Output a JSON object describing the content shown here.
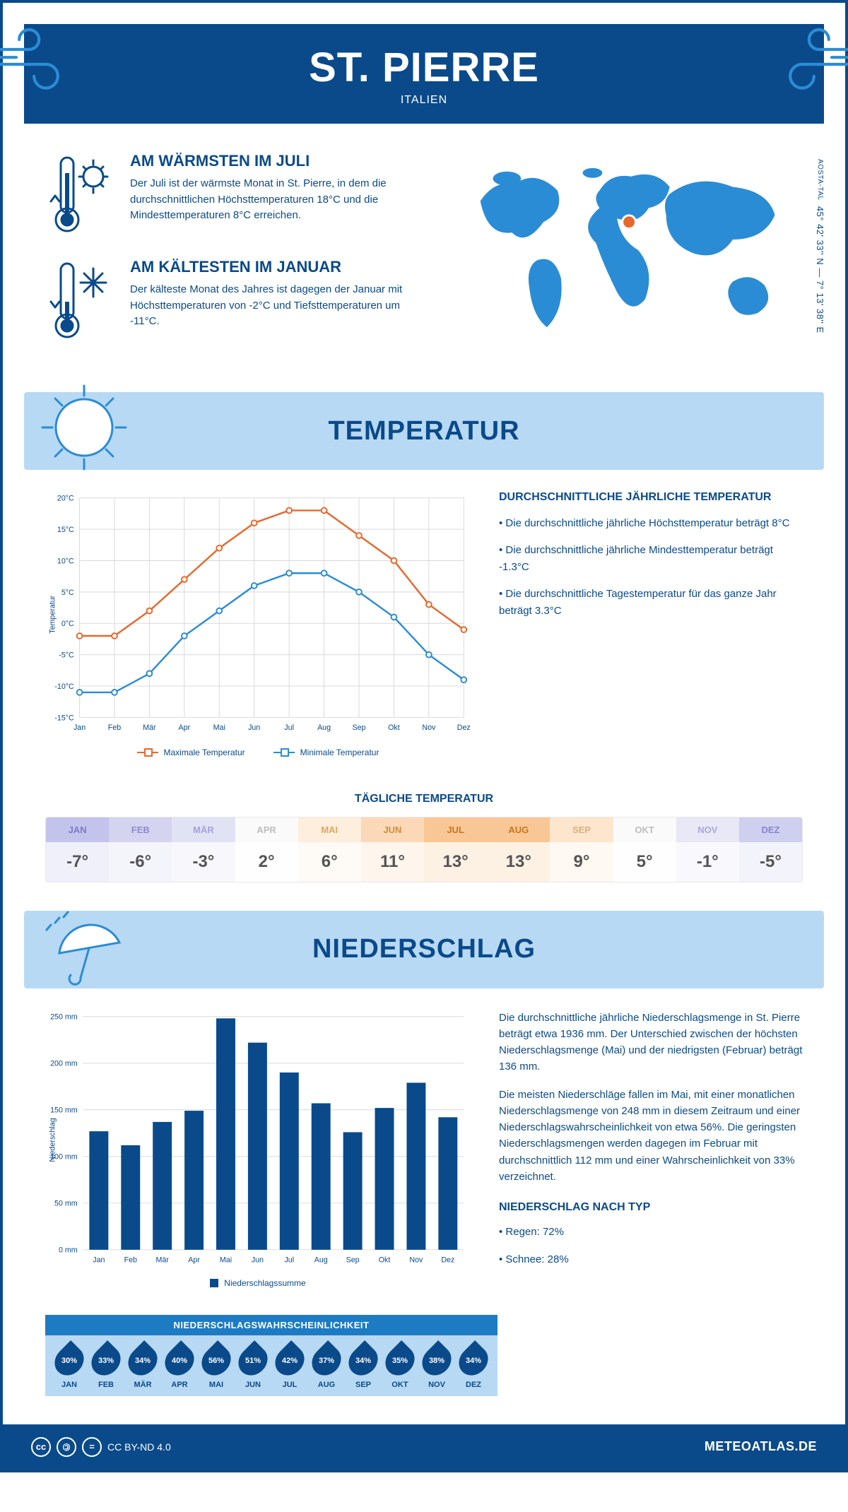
{
  "header": {
    "title": "ST. PIERRE",
    "country": "ITALIEN"
  },
  "coords": {
    "lat": "45° 42' 33'' N",
    "sep": "—",
    "lon": "7° 13' 38'' E",
    "region": "AOSTA-TAL"
  },
  "facts": {
    "warm": {
      "title": "AM WÄRMSTEN IM JULI",
      "text": "Der Juli ist der wärmste Monat in St. Pierre, in dem die durchschnittlichen Höchsttemperaturen 18°C und die Mindesttemperaturen 8°C erreichen."
    },
    "cold": {
      "title": "AM KÄLTESTEN IM JANUAR",
      "text": "Der kälteste Monat des Jahres ist dagegen der Januar mit Höchsttemperaturen von -2°C und Tiefsttemperaturen um -11°C."
    }
  },
  "sections": {
    "temperature": "TEMPERATUR",
    "precipitation": "NIEDERSCHLAG"
  },
  "temp_chart": {
    "type": "line",
    "months": [
      "Jan",
      "Feb",
      "Mär",
      "Apr",
      "Mai",
      "Jun",
      "Jul",
      "Aug",
      "Sep",
      "Okt",
      "Nov",
      "Dez"
    ],
    "max_series": [
      -2,
      -2,
      2,
      7,
      12,
      16,
      18,
      18,
      14,
      10,
      3,
      -1
    ],
    "min_series": [
      -11,
      -11,
      -8,
      -2,
      2,
      6,
      8,
      8,
      5,
      1,
      -5,
      -9
    ],
    "max_color": "#e8682c",
    "min_color": "#2b8cd6",
    "ylim": [
      -15,
      20
    ],
    "ytick_step": 5,
    "ylabel": "Temperatur",
    "grid_color": "#d9d9d9",
    "line_width": 2.5,
    "marker_radius": 4,
    "legend": {
      "max": "Maximale Temperatur",
      "min": "Minimale Temperatur"
    }
  },
  "temp_notes": {
    "heading": "DURCHSCHNITTLICHE JÄHRLICHE TEMPERATUR",
    "p1": "• Die durchschnittliche jährliche Höchsttemperatur beträgt 8°C",
    "p2": "• Die durchschnittliche jährliche Mindesttemperatur beträgt -1.3°C",
    "p3": "• Die durchschnittliche Tagestemperatur für das ganze Jahr beträgt 3.3°C"
  },
  "daily": {
    "title": "TÄGLICHE TEMPERATUR",
    "months": [
      "JAN",
      "FEB",
      "MÄR",
      "APR",
      "MAI",
      "JUN",
      "JUL",
      "AUG",
      "SEP",
      "OKT",
      "NOV",
      "DEZ"
    ],
    "values": [
      "-7°",
      "-6°",
      "-3°",
      "2°",
      "6°",
      "11°",
      "13°",
      "13°",
      "9°",
      "5°",
      "-1°",
      "-5°"
    ],
    "head_colors": [
      "#c3c3ec",
      "#d4d4f0",
      "#e2e2f5",
      "#fafafa",
      "#fdeedd",
      "#fbd9b8",
      "#f9c795",
      "#f9c795",
      "#fde6cd",
      "#fafafa",
      "#e8e8f6",
      "#cfcff0"
    ],
    "label_colors": [
      "#7a7ac8",
      "#8b8bd2",
      "#a1a1de",
      "#bdbdbd",
      "#d9a862",
      "#d18c3a",
      "#c87520",
      "#c87520",
      "#dbb078",
      "#bdbdbd",
      "#a7a7e0",
      "#8686cf"
    ]
  },
  "precip_chart": {
    "type": "bar",
    "months": [
      "Jan",
      "Feb",
      "Mär",
      "Apr",
      "Mai",
      "Jun",
      "Jul",
      "Aug",
      "Sep",
      "Okt",
      "Nov",
      "Dez"
    ],
    "values": [
      127,
      112,
      137,
      149,
      248,
      222,
      190,
      157,
      126,
      152,
      179,
      142
    ],
    "bar_color": "#0a4a8a",
    "ylim": [
      0,
      250
    ],
    "ytick_step": 50,
    "ylabel": "Niederschlag",
    "grid_color": "#d9d9d9",
    "legend": "Niederschlagssumme"
  },
  "precip_notes": {
    "p1": "Die durchschnittliche jährliche Niederschlagsmenge in St. Pierre beträgt etwa 1936 mm. Der Unterschied zwischen der höchsten Niederschlagsmenge (Mai) und der niedrigsten (Februar) beträgt 136 mm.",
    "p2": "Die meisten Niederschläge fallen im Mai, mit einer monatlichen Niederschlagsmenge von 248 mm in diesem Zeitraum und einer Niederschlagswahrscheinlichkeit von etwa 56%. Die geringsten Niederschlagsmengen werden dagegen im Februar mit durchschnittlich 112 mm und einer Wahrscheinlichkeit von 33% verzeichnet.",
    "type_heading": "NIEDERSCHLAG NACH TYP",
    "rain": "• Regen: 72%",
    "snow": "• Schnee: 28%"
  },
  "probability": {
    "title": "NIEDERSCHLAGSWAHRSCHEINLICHKEIT",
    "months": [
      "JAN",
      "FEB",
      "MÄR",
      "APR",
      "MAI",
      "JUN",
      "JUL",
      "AUG",
      "SEP",
      "OKT",
      "NOV",
      "DEZ"
    ],
    "values": [
      "30%",
      "33%",
      "34%",
      "40%",
      "56%",
      "51%",
      "42%",
      "37%",
      "34%",
      "35%",
      "38%",
      "34%"
    ]
  },
  "footer": {
    "license": "CC BY-ND 4.0",
    "brand": "METEOATLAS.DE"
  }
}
